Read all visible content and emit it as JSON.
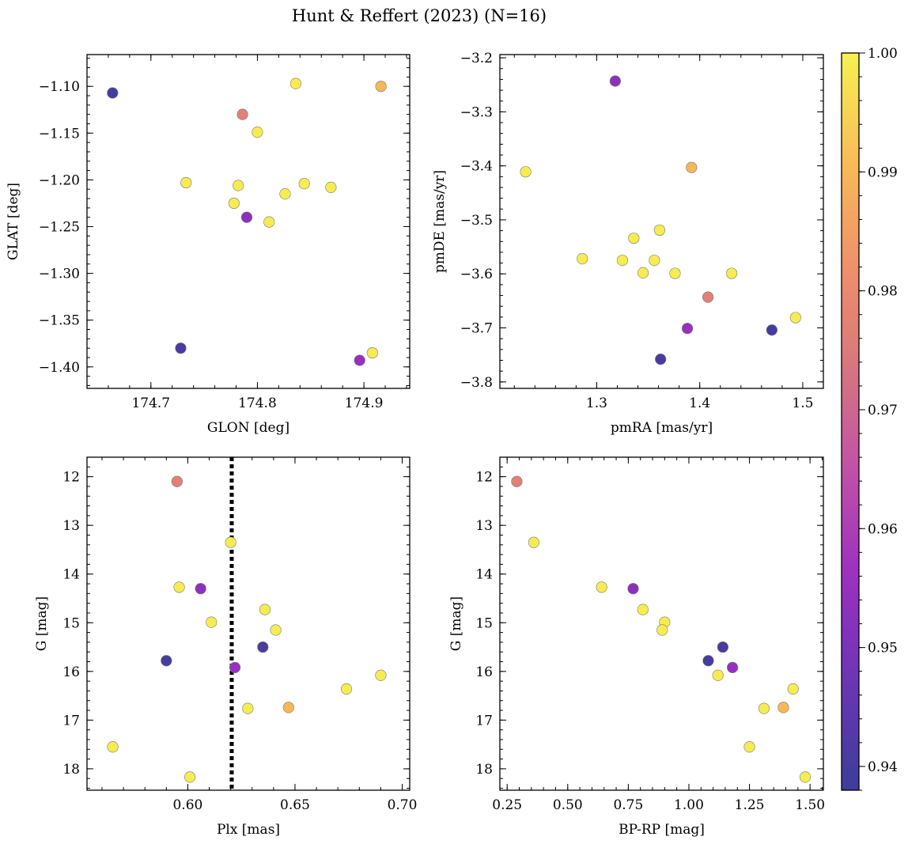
{
  "figure": {
    "title": "Hunt & Reffert (2023) (N=16)"
  },
  "colors": {
    "colormap": "plasma",
    "colormap_stops": [
      "#3a3e9a",
      "#6a36b3",
      "#9a2fc1",
      "#c04fa8",
      "#d8757f",
      "#f0916a",
      "#f8bd56",
      "#f6f252"
    ],
    "marker_edge": "#7a7a7a",
    "guide_line": "#000000"
  },
  "colorbar": {
    "vmin": 0.938,
    "vmax": 1.0,
    "ticks": [
      0.94,
      0.95,
      0.96,
      0.97,
      0.98,
      0.99,
      1.0
    ],
    "tick_labels": [
      "0.94",
      "0.95",
      "0.96",
      "0.97",
      "0.98",
      "0.99",
      "1.00"
    ]
  },
  "chart_data": [
    {
      "type": "scatter",
      "xlabel": "GLON [deg]",
      "ylabel": "GLAT [deg]",
      "xlim": [
        174.64,
        174.943
      ],
      "ylim": [
        -1.423,
        -1.066
      ],
      "xticks": [
        174.7,
        174.8,
        174.9
      ],
      "xtick_labels": [
        "174.7",
        "174.8",
        "174.9"
      ],
      "yticks": [
        -1.4,
        -1.35,
        -1.3,
        -1.25,
        -1.2,
        -1.15,
        -1.1
      ],
      "ytick_labels": [
        "−1.40",
        "−1.35",
        "−1.30",
        "−1.25",
        "−1.20",
        "−1.15",
        "−1.10"
      ],
      "y_inverted": false,
      "points": [
        {
          "x": 174.664,
          "y": -1.107,
          "c": 0.94
        },
        {
          "x": 174.728,
          "y": -1.38,
          "c": 0.941
        },
        {
          "x": 174.786,
          "y": -1.13,
          "c": 0.977
        },
        {
          "x": 174.79,
          "y": -1.24,
          "c": 0.953
        },
        {
          "x": 174.896,
          "y": -1.393,
          "c": 0.955
        },
        {
          "x": 174.916,
          "y": -1.1,
          "c": 0.99
        },
        {
          "x": 174.836,
          "y": -1.097,
          "c": 0.999
        },
        {
          "x": 174.8,
          "y": -1.149,
          "c": 0.999
        },
        {
          "x": 174.733,
          "y": -1.203,
          "c": 0.999
        },
        {
          "x": 174.782,
          "y": -1.206,
          "c": 0.999
        },
        {
          "x": 174.778,
          "y": -1.225,
          "c": 0.999
        },
        {
          "x": 174.811,
          "y": -1.245,
          "c": 0.999
        },
        {
          "x": 174.826,
          "y": -1.215,
          "c": 0.999
        },
        {
          "x": 174.844,
          "y": -1.204,
          "c": 0.999
        },
        {
          "x": 174.869,
          "y": -1.208,
          "c": 0.999
        },
        {
          "x": 174.908,
          "y": -1.385,
          "c": 0.999
        }
      ]
    },
    {
      "type": "scatter",
      "xlabel": "pmRA [mas/yr]",
      "ylabel": "pmDE [mas/yr]",
      "xlim": [
        1.206,
        1.52
      ],
      "ylim": [
        -3.812,
        -3.194
      ],
      "xticks": [
        1.3,
        1.4,
        1.5
      ],
      "xtick_labels": [
        "1.3",
        "1.4",
        "1.5"
      ],
      "yticks": [
        -3.8,
        -3.7,
        -3.6,
        -3.5,
        -3.4,
        -3.3,
        -3.2
      ],
      "ytick_labels": [
        "−3.8",
        "−3.7",
        "−3.6",
        "−3.5",
        "−3.4",
        "−3.3",
        "−3.2"
      ],
      "y_inverted": false,
      "points": [
        {
          "x": 1.318,
          "y": -3.243,
          "c": 0.953
        },
        {
          "x": 1.47,
          "y": -3.704,
          "c": 0.94
        },
        {
          "x": 1.362,
          "y": -3.758,
          "c": 0.941
        },
        {
          "x": 1.388,
          "y": -3.701,
          "c": 0.955
        },
        {
          "x": 1.408,
          "y": -3.643,
          "c": 0.977
        },
        {
          "x": 1.392,
          "y": -3.403,
          "c": 0.99
        },
        {
          "x": 1.231,
          "y": -3.411,
          "c": 0.999
        },
        {
          "x": 1.286,
          "y": -3.572,
          "c": 0.999
        },
        {
          "x": 1.325,
          "y": -3.575,
          "c": 0.999
        },
        {
          "x": 1.336,
          "y": -3.534,
          "c": 0.999
        },
        {
          "x": 1.345,
          "y": -3.598,
          "c": 0.999
        },
        {
          "x": 1.356,
          "y": -3.575,
          "c": 0.999
        },
        {
          "x": 1.361,
          "y": -3.519,
          "c": 0.999
        },
        {
          "x": 1.376,
          "y": -3.599,
          "c": 0.999
        },
        {
          "x": 1.431,
          "y": -3.599,
          "c": 0.999
        },
        {
          "x": 1.493,
          "y": -3.681,
          "c": 0.999
        }
      ]
    },
    {
      "type": "scatter",
      "xlabel": "Plx [mas]",
      "ylabel": "G [mag]",
      "xlim": [
        0.553,
        0.7035
      ],
      "ylim": [
        11.6,
        18.44
      ],
      "xticks": [
        0.6,
        0.65,
        0.7
      ],
      "xtick_labels": [
        "0.60",
        "0.65",
        "0.70"
      ],
      "yticks": [
        12,
        13,
        14,
        15,
        16,
        17,
        18
      ],
      "ytick_labels": [
        "12",
        "13",
        "14",
        "15",
        "16",
        "17",
        "18"
      ],
      "y_inverted": true,
      "vline": 0.6205,
      "points": [
        {
          "x": 0.595,
          "y": 12.1,
          "c": 0.977
        },
        {
          "x": 0.606,
          "y": 14.3,
          "c": 0.953
        },
        {
          "x": 0.59,
          "y": 15.78,
          "c": 0.94
        },
        {
          "x": 0.635,
          "y": 15.5,
          "c": 0.941
        },
        {
          "x": 0.622,
          "y": 15.92,
          "c": 0.955
        },
        {
          "x": 0.647,
          "y": 16.74,
          "c": 0.99
        },
        {
          "x": 0.62,
          "y": 13.35,
          "c": 0.999
        },
        {
          "x": 0.596,
          "y": 14.27,
          "c": 0.999
        },
        {
          "x": 0.611,
          "y": 14.99,
          "c": 0.999
        },
        {
          "x": 0.636,
          "y": 14.73,
          "c": 0.999
        },
        {
          "x": 0.641,
          "y": 15.15,
          "c": 0.999
        },
        {
          "x": 0.628,
          "y": 16.76,
          "c": 0.999
        },
        {
          "x": 0.674,
          "y": 16.36,
          "c": 0.999
        },
        {
          "x": 0.69,
          "y": 16.08,
          "c": 0.999
        },
        {
          "x": 0.565,
          "y": 17.55,
          "c": 0.999
        },
        {
          "x": 0.601,
          "y": 18.17,
          "c": 0.999
        }
      ]
    },
    {
      "type": "scatter",
      "xlabel": "BP-RP [mag]",
      "ylabel": "G [mag]",
      "xlim": [
        0.22,
        1.555
      ],
      "ylim": [
        11.6,
        18.44
      ],
      "xticks": [
        0.25,
        0.5,
        0.75,
        1.0,
        1.25,
        1.5
      ],
      "xtick_labels": [
        "0.25",
        "0.50",
        "0.75",
        "1.00",
        "1.25",
        "1.50"
      ],
      "yticks": [
        12,
        13,
        14,
        15,
        16,
        17,
        18
      ],
      "ytick_labels": [
        "12",
        "13",
        "14",
        "15",
        "16",
        "17",
        "18"
      ],
      "y_inverted": true,
      "points": [
        {
          "x": 0.29,
          "y": 12.1,
          "c": 0.977
        },
        {
          "x": 0.77,
          "y": 14.3,
          "c": 0.953
        },
        {
          "x": 1.08,
          "y": 15.78,
          "c": 0.94
        },
        {
          "x": 1.14,
          "y": 15.5,
          "c": 0.941
        },
        {
          "x": 1.18,
          "y": 15.92,
          "c": 0.955
        },
        {
          "x": 1.39,
          "y": 16.74,
          "c": 0.99
        },
        {
          "x": 0.36,
          "y": 13.35,
          "c": 0.999
        },
        {
          "x": 0.64,
          "y": 14.27,
          "c": 0.999
        },
        {
          "x": 0.81,
          "y": 14.73,
          "c": 0.999
        },
        {
          "x": 0.9,
          "y": 14.99,
          "c": 0.999
        },
        {
          "x": 0.89,
          "y": 15.15,
          "c": 0.999
        },
        {
          "x": 1.12,
          "y": 16.08,
          "c": 0.999
        },
        {
          "x": 1.31,
          "y": 16.76,
          "c": 0.999
        },
        {
          "x": 1.43,
          "y": 16.36,
          "c": 0.999
        },
        {
          "x": 1.25,
          "y": 17.55,
          "c": 0.999
        },
        {
          "x": 1.48,
          "y": 18.17,
          "c": 0.999
        }
      ]
    }
  ]
}
